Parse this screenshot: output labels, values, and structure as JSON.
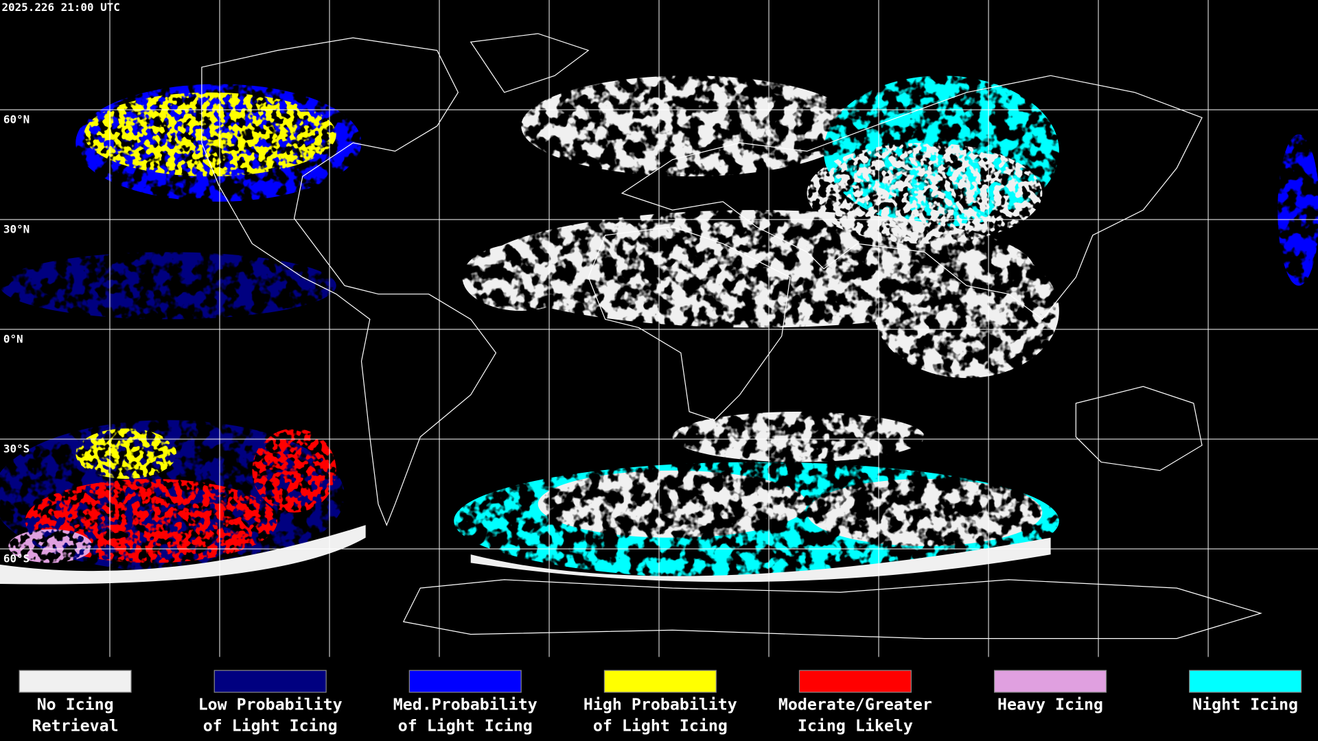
{
  "header": {
    "timestamp": "2025.226 21:00 UTC"
  },
  "map": {
    "lat_labels": [
      "60°N",
      "30°N",
      "0°N",
      "30°S",
      "60°S"
    ]
  },
  "legend": {
    "items": [
      {
        "lines": [
          "No Icing",
          "Retrieval"
        ],
        "color": "#f0f0f0"
      },
      {
        "lines": [
          "Low Probability",
          "of Light Icing"
        ],
        "color": "#000080"
      },
      {
        "lines": [
          "Med.Probability",
          "of Light Icing"
        ],
        "color": "#0000ff"
      },
      {
        "lines": [
          "High Probability",
          "of Light Icing"
        ],
        "color": "#ffff00"
      },
      {
        "lines": [
          "Moderate/Greater",
          "Icing Likely"
        ],
        "color": "#ff0000"
      },
      {
        "lines": [
          "Heavy Icing"
        ],
        "color": "#e0a0e0"
      },
      {
        "lines": [
          "Night Icing"
        ],
        "color": "#00ffff"
      }
    ]
  }
}
